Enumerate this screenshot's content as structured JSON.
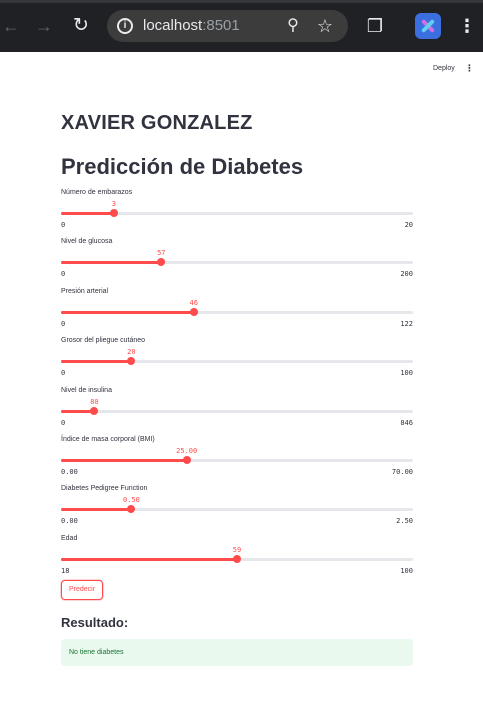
{
  "browser": {
    "url_host": "localhost",
    "url_port": ":8501"
  },
  "app": {
    "deploy_label": "Deploy",
    "author": "XAVIER GONZALEZ",
    "title": "Predicción de Diabetes",
    "sliders": [
      {
        "label": "Número de embarazos",
        "value": "3",
        "min": "0",
        "max": "20",
        "fraction": 0.15
      },
      {
        "label": "Nivel de glucosa",
        "value": "57",
        "min": "0",
        "max": "200",
        "fraction": 0.285
      },
      {
        "label": "Presión arterial",
        "value": "46",
        "min": "0",
        "max": "122",
        "fraction": 0.377
      },
      {
        "label": "Grosor del pliegue cutáneo",
        "value": "20",
        "min": "0",
        "max": "100",
        "fraction": 0.2
      },
      {
        "label": "Nivel de insulina",
        "value": "80",
        "min": "0",
        "max": "846",
        "fraction": 0.095
      },
      {
        "label": "Índice de masa corporal (BMI)",
        "value": "25.00",
        "min": "0.00",
        "max": "70.00",
        "fraction": 0.357
      },
      {
        "label": "Diabetes Pedigree Function",
        "value": "0.50",
        "min": "0.00",
        "max": "2.50",
        "fraction": 0.2
      },
      {
        "label": "Edad",
        "value": "59",
        "min": "18",
        "max": "100",
        "fraction": 0.5
      }
    ],
    "predict_button": "Predecir",
    "result_heading": "Resultado:",
    "result_text": "No tiene diabetes"
  }
}
